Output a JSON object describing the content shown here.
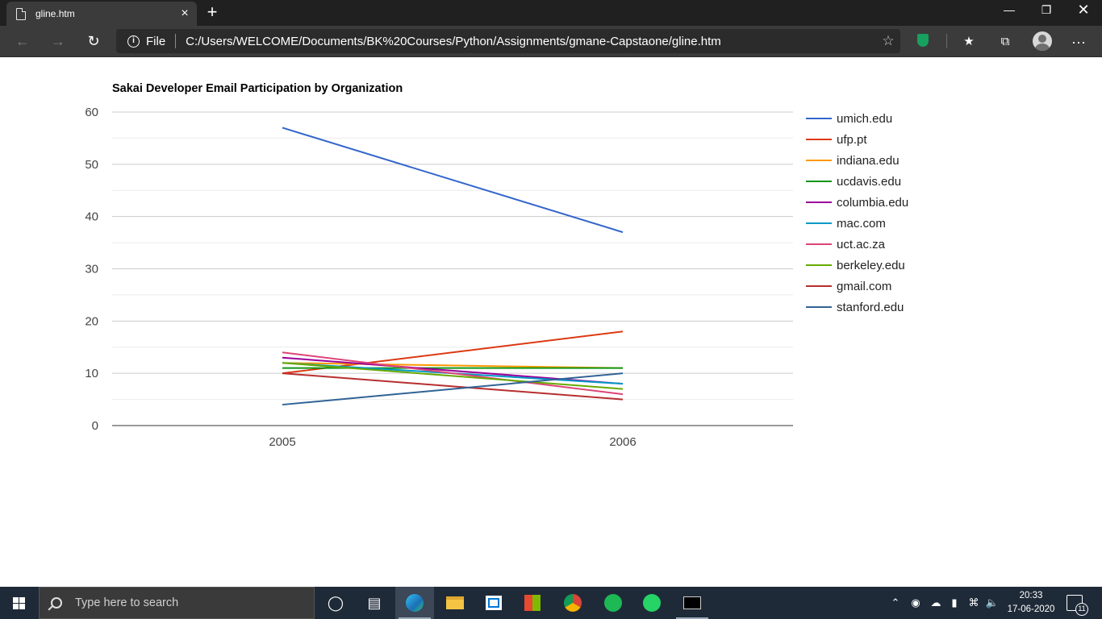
{
  "browser": {
    "tab_title": "gline.htm",
    "tab_close": "×",
    "new_tab": "+",
    "file_label": "File",
    "url": "C:/Users/WELCOME/Documents/BK%20Courses/Python/Assignments/gmane-Capstaone/gline.htm"
  },
  "taskbar": {
    "search_placeholder": "Type here to search",
    "time": "20:33",
    "date": "17-06-2020",
    "notification_count": "11"
  },
  "colors": {
    "umich": "#3366cc",
    "ufp": "#dc3912",
    "indiana": "#ff9900",
    "ucdavis": "#109618",
    "columbia": "#990099",
    "mac": "#0099c6",
    "uct": "#dd4477",
    "berkeley": "#66aa00",
    "gmail": "#b82e2e",
    "stanford": "#316395"
  },
  "chart_data": {
    "type": "line",
    "title": "Sakai Developer Email Participation by Organization",
    "categories": [
      "2005",
      "2006"
    ],
    "ylim": [
      0,
      60
    ],
    "yticks": [
      "0",
      "10",
      "20",
      "30",
      "40",
      "50",
      "60"
    ],
    "grid": true,
    "legend": "right",
    "series": [
      {
        "name": "umich.edu",
        "values": [
          57,
          37
        ],
        "color": "#3366cc"
      },
      {
        "name": "ufp.pt",
        "values": [
          10,
          18
        ],
        "color": "#dc3912"
      },
      {
        "name": "indiana.edu",
        "values": [
          12,
          11
        ],
        "color": "#ff9900"
      },
      {
        "name": "ucdavis.edu",
        "values": [
          11,
          11
        ],
        "color": "#109618"
      },
      {
        "name": "columbia.edu",
        "values": [
          13,
          8
        ],
        "color": "#990099"
      },
      {
        "name": "mac.com",
        "values": [
          12,
          8
        ],
        "color": "#0099c6"
      },
      {
        "name": "uct.ac.za",
        "values": [
          14,
          6
        ],
        "color": "#dd4477"
      },
      {
        "name": "berkeley.edu",
        "values": [
          12,
          7
        ],
        "color": "#66aa00"
      },
      {
        "name": "gmail.com",
        "values": [
          10,
          5
        ],
        "color": "#b82e2e"
      },
      {
        "name": "stanford.edu",
        "values": [
          4,
          10
        ],
        "color": "#316395"
      }
    ]
  }
}
